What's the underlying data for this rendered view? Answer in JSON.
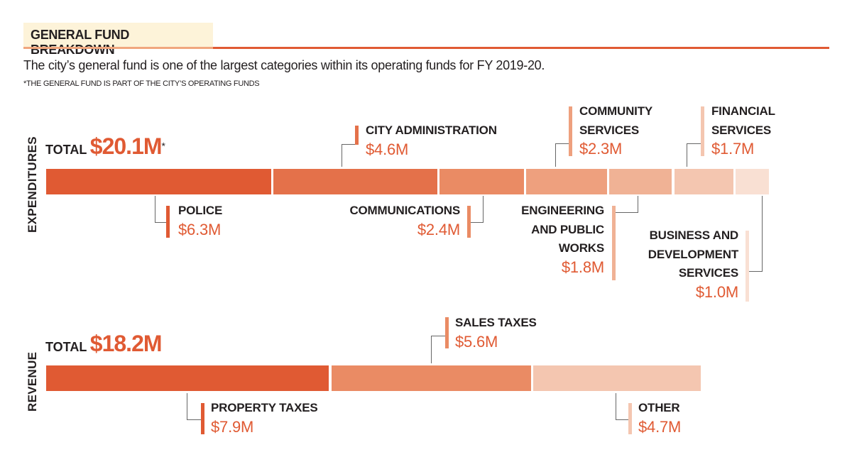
{
  "header": {
    "title": "GENERAL FUND BREAKDOWN",
    "subtitle": "The city’s general fund is one of the largest categories within its operating funds for FY 2019-20.",
    "footnote": "*THE GENERAL FUND IS PART OF THE CITY’S OPERATING FUNDS"
  },
  "chart_data": [
    {
      "type": "bar",
      "orientation": "horizontal-stacked",
      "title": "EXPENDITURES",
      "total_label": "TOTAL",
      "total": "$20.1M",
      "total_mark": "*",
      "total_value": 20.1,
      "unit": "$M",
      "categories": [
        {
          "label": "POLICE",
          "value": 6.3,
          "value_label": "$6.3M",
          "color": "#e05a33"
        },
        {
          "label": "CITY ADMINISTRATION",
          "value": 4.6,
          "value_label": "$4.6M",
          "color": "#e4714a"
        },
        {
          "label": "COMMUNICATIONS",
          "value": 2.4,
          "value_label": "$2.4M",
          "color": "#ea8b64"
        },
        {
          "label": "COMMUNITY SERVICES",
          "value": 2.3,
          "value_label": "$2.3M",
          "color": "#eea07e"
        },
        {
          "label": "ENGINEERING AND PUBLIC WORKS",
          "value": 1.8,
          "value_label": "$1.8M",
          "color": "#f0b295"
        },
        {
          "label": "FINANCIAL SERVICES",
          "value": 1.7,
          "value_label": "$1.7M",
          "color": "#f4c6b0"
        },
        {
          "label": "BUSINESS AND DEVELOPMENT SERVICES",
          "value": 1.0,
          "value_label": "$1.0M",
          "color": "#f9e0d3"
        }
      ]
    },
    {
      "type": "bar",
      "orientation": "horizontal-stacked",
      "title": "REVENUE",
      "total_label": "TOTAL",
      "total": "$18.2M",
      "total_value": 18.2,
      "unit": "$M",
      "categories": [
        {
          "label": "PROPERTY TAXES",
          "value": 7.9,
          "value_label": "$7.9M",
          "color": "#e05a33"
        },
        {
          "label": "SALES TAXES",
          "value": 5.6,
          "value_label": "$5.6M",
          "color": "#ea8b64"
        },
        {
          "label": "OTHER",
          "value": 4.7,
          "value_label": "$4.7M",
          "color": "#f4c6b0"
        }
      ]
    }
  ]
}
